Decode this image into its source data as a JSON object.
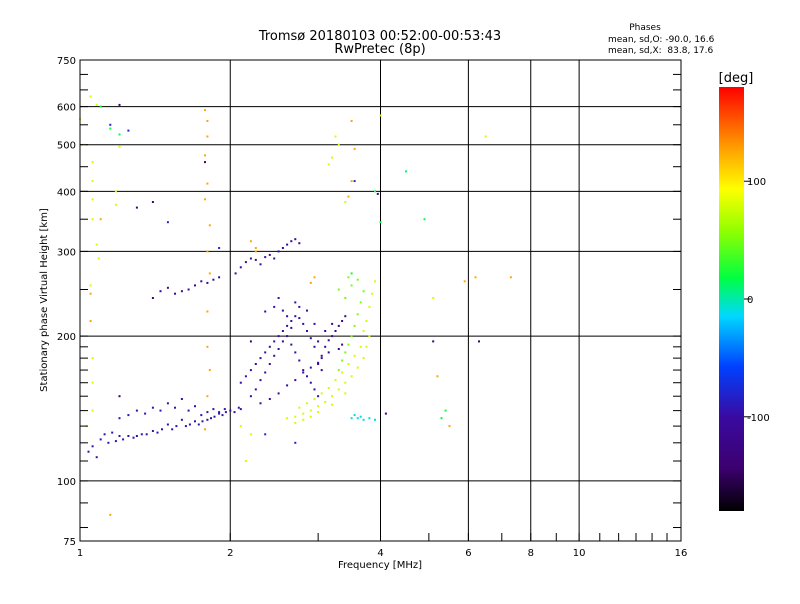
{
  "chart_data": {
    "type": "scatter",
    "title": "Tromsø 20180103 00:52:00-00:53:43",
    "subtitle": "RwPretec (8p)",
    "xlabel": "Frequency [MHz]",
    "ylabel": "Stationary phase Virtual Height [km]",
    "x_scale": "log",
    "y_scale": "log",
    "xlim": [
      1,
      16
    ],
    "ylim": [
      75,
      750
    ],
    "x_ticks": [
      1,
      2,
      4,
      6,
      8,
      10,
      16
    ],
    "x_minor_ticks": [
      3,
      5,
      7,
      9,
      11,
      12,
      13,
      14,
      15
    ],
    "y_ticks": [
      75,
      100,
      200,
      300,
      400,
      500,
      600,
      750
    ],
    "x_gridlines": [
      1,
      2,
      4,
      6,
      8,
      10
    ],
    "y_gridlines": [
      100,
      200,
      300,
      400,
      500,
      600
    ],
    "stats": {
      "heading": "Phases",
      "o_line": "mean, sd,O: -90.0, 16.6",
      "x_line": "mean, sd,X:  83.8, 17.6"
    },
    "colorbar": {
      "label": "[deg]",
      "range": [
        -180,
        180
      ],
      "ticks": [
        {
          "value": 100,
          "label": "100"
        },
        {
          "value": 0,
          "label": "0"
        },
        {
          "value": -100,
          "label": "-100"
        }
      ]
    },
    "clusters": [
      {
        "phase": -95,
        "points": [
          [
            1.04,
            115
          ],
          [
            1.06,
            118
          ],
          [
            1.08,
            112
          ],
          [
            1.1,
            122
          ],
          [
            1.12,
            125
          ],
          [
            1.14,
            120
          ],
          [
            1.16,
            126
          ],
          [
            1.18,
            121
          ],
          [
            1.2,
            124
          ],
          [
            1.22,
            122
          ],
          [
            1.25,
            124
          ],
          [
            1.28,
            123
          ],
          [
            1.3,
            124
          ],
          [
            1.33,
            125
          ],
          [
            1.36,
            125
          ],
          [
            1.4,
            127
          ],
          [
            1.43,
            126
          ],
          [
            1.46,
            128
          ],
          [
            1.5,
            131
          ],
          [
            1.53,
            128
          ],
          [
            1.56,
            130
          ],
          [
            1.6,
            134
          ],
          [
            1.63,
            130
          ],
          [
            1.66,
            131
          ],
          [
            1.7,
            133
          ],
          [
            1.73,
            131
          ],
          [
            1.76,
            133
          ],
          [
            1.8,
            134
          ],
          [
            1.83,
            135
          ],
          [
            1.86,
            136
          ],
          [
            1.9,
            138
          ],
          [
            1.93,
            137
          ],
          [
            1.96,
            139
          ],
          [
            2.0,
            140
          ],
          [
            2.04,
            139
          ],
          [
            2.08,
            142
          ],
          [
            2.1,
            141
          ],
          [
            1.2,
            135
          ],
          [
            1.25,
            137
          ],
          [
            1.3,
            140
          ],
          [
            1.35,
            138
          ],
          [
            1.4,
            142
          ],
          [
            1.45,
            140
          ],
          [
            1.5,
            145
          ],
          [
            1.55,
            142
          ],
          [
            1.6,
            148
          ],
          [
            1.65,
            140
          ],
          [
            1.7,
            143
          ],
          [
            1.75,
            137
          ],
          [
            1.8,
            139
          ],
          [
            1.85,
            141
          ],
          [
            1.9,
            139
          ],
          [
            1.95,
            141
          ]
        ]
      },
      {
        "phase": -100,
        "points": [
          [
            2.1,
            160
          ],
          [
            2.15,
            165
          ],
          [
            2.2,
            170
          ],
          [
            2.25,
            175
          ],
          [
            2.3,
            180
          ],
          [
            2.35,
            185
          ],
          [
            2.4,
            190
          ],
          [
            2.45,
            195
          ],
          [
            2.5,
            200
          ],
          [
            2.55,
            205
          ],
          [
            2.6,
            210
          ],
          [
            2.65,
            215
          ],
          [
            2.7,
            220
          ],
          [
            2.75,
            218
          ],
          [
            2.8,
            212
          ],
          [
            2.85,
            205
          ],
          [
            2.9,
            198
          ],
          [
            2.95,
            190
          ],
          [
            2.2,
            150
          ],
          [
            2.25,
            155
          ],
          [
            2.3,
            162
          ],
          [
            2.35,
            168
          ],
          [
            2.4,
            175
          ],
          [
            2.45,
            182
          ],
          [
            2.5,
            188
          ],
          [
            2.55,
            195
          ],
          [
            2.6,
            200
          ],
          [
            2.65,
            192
          ],
          [
            2.7,
            185
          ],
          [
            2.75,
            178
          ],
          [
            2.8,
            170
          ],
          [
            2.85,
            165
          ],
          [
            2.9,
            160
          ],
          [
            2.95,
            155
          ],
          [
            3.0,
            150
          ],
          [
            2.3,
            145
          ],
          [
            2.4,
            148
          ],
          [
            2.5,
            152
          ],
          [
            2.6,
            158
          ],
          [
            2.7,
            162
          ],
          [
            2.8,
            168
          ],
          [
            2.9,
            172
          ],
          [
            3.0,
            176
          ],
          [
            3.05,
            180
          ],
          [
            2.35,
            225
          ],
          [
            2.45,
            230
          ],
          [
            2.55,
            226
          ],
          [
            2.65,
            208
          ],
          [
            2.75,
            230
          ],
          [
            2.85,
            226
          ],
          [
            2.95,
            212
          ],
          [
            2.5,
            240
          ],
          [
            2.6,
            220
          ],
          [
            2.7,
            235
          ]
        ]
      },
      {
        "phase": -105,
        "points": [
          [
            2.05,
            270
          ],
          [
            2.1,
            278
          ],
          [
            2.15,
            285
          ],
          [
            2.2,
            290
          ],
          [
            2.25,
            288
          ],
          [
            2.3,
            282
          ],
          [
            2.35,
            292
          ],
          [
            2.4,
            295
          ],
          [
            2.45,
            290
          ],
          [
            2.5,
            300
          ],
          [
            2.55,
            305
          ],
          [
            2.6,
            310
          ],
          [
            2.65,
            315
          ],
          [
            2.7,
            318
          ],
          [
            2.75,
            312
          ],
          [
            1.7,
            255
          ],
          [
            1.75,
            260
          ],
          [
            1.8,
            258
          ],
          [
            1.85,
            262
          ],
          [
            1.9,
            265
          ],
          [
            1.65,
            250
          ],
          [
            1.6,
            248
          ],
          [
            1.55,
            245
          ],
          [
            1.45,
            248
          ],
          [
            1.5,
            252
          ]
        ]
      },
      {
        "phase": -120,
        "points": [
          [
            3.0,
            175
          ],
          [
            3.05,
            182
          ],
          [
            3.1,
            190
          ],
          [
            3.15,
            196
          ],
          [
            3.2,
            200
          ],
          [
            3.25,
            205
          ],
          [
            3.3,
            210
          ],
          [
            3.35,
            215
          ],
          [
            3.4,
            220
          ],
          [
            3.0,
            195
          ],
          [
            3.1,
            205
          ],
          [
            3.2,
            212
          ],
          [
            3.3,
            188
          ],
          [
            3.35,
            192
          ],
          [
            3.05,
            170
          ],
          [
            3.15,
            185
          ]
        ]
      },
      {
        "phase": 50,
        "points": [
          [
            3.3,
            170
          ],
          [
            3.35,
            178
          ],
          [
            3.4,
            185
          ],
          [
            3.45,
            192
          ],
          [
            3.5,
            200
          ],
          [
            3.55,
            210
          ],
          [
            3.6,
            222
          ],
          [
            3.65,
            235
          ],
          [
            3.7,
            248
          ],
          [
            3.4,
            240
          ],
          [
            3.5,
            255
          ],
          [
            3.6,
            262
          ],
          [
            3.3,
            250
          ],
          [
            3.45,
            265
          ]
        ]
      },
      {
        "phase": 78,
        "points": [
          [
            2.6,
            135
          ],
          [
            2.7,
            136
          ],
          [
            2.8,
            138
          ],
          [
            2.9,
            140
          ],
          [
            3.0,
            143
          ],
          [
            3.1,
            146
          ],
          [
            3.2,
            150
          ],
          [
            3.3,
            155
          ],
          [
            3.4,
            160
          ],
          [
            3.5,
            165
          ],
          [
            3.6,
            172
          ],
          [
            3.7,
            180
          ],
          [
            3.75,
            190
          ],
          [
            3.8,
            200
          ],
          [
            2.75,
            142
          ],
          [
            2.85,
            145
          ],
          [
            2.95,
            148
          ],
          [
            3.05,
            152
          ],
          [
            3.15,
            156
          ],
          [
            3.25,
            162
          ],
          [
            3.35,
            168
          ],
          [
            3.45,
            175
          ],
          [
            3.55,
            182
          ],
          [
            3.65,
            190
          ],
          [
            3.7,
            205
          ],
          [
            3.75,
            215
          ],
          [
            3.8,
            230
          ],
          [
            3.85,
            245
          ],
          [
            3.9,
            260
          ],
          [
            2.7,
            132
          ],
          [
            2.8,
            134
          ],
          [
            2.9,
            136
          ],
          [
            3.0,
            139
          ],
          [
            3.2,
            144
          ],
          [
            3.4,
            152
          ]
        ]
      },
      {
        "phase": -10,
        "points": [
          [
            3.5,
            135
          ],
          [
            3.6,
            135
          ],
          [
            3.7,
            134
          ],
          [
            3.8,
            135
          ],
          [
            3.9,
            134
          ],
          [
            3.55,
            137
          ],
          [
            3.65,
            136
          ]
        ]
      },
      {
        "phase": 125,
        "points": [
          [
            1.78,
            590
          ],
          [
            1.8,
            560
          ],
          [
            1.8,
            520
          ],
          [
            1.78,
            475
          ],
          [
            1.8,
            415
          ],
          [
            1.78,
            385
          ],
          [
            1.82,
            340
          ],
          [
            1.8,
            300
          ],
          [
            1.82,
            270
          ],
          [
            1.8,
            225
          ],
          [
            1.8,
            190
          ],
          [
            1.82,
            170
          ],
          [
            1.8,
            150
          ],
          [
            1.78,
            128
          ],
          [
            1.05,
            245
          ],
          [
            1.05,
            215
          ],
          [
            1.1,
            350
          ],
          [
            3.5,
            560
          ],
          [
            3.55,
            490
          ],
          [
            3.5,
            420
          ],
          [
            3.45,
            390
          ],
          [
            5.3,
            135
          ],
          [
            5.5,
            130
          ],
          [
            5.2,
            165
          ],
          [
            1.15,
            85
          ],
          [
            2.2,
            315
          ],
          [
            2.25,
            300
          ],
          [
            2.25,
            305
          ],
          [
            2.95,
            265
          ],
          [
            2.9,
            258
          ],
          [
            5.9,
            260
          ],
          [
            6.2,
            265
          ],
          [
            7.3,
            265
          ]
        ]
      },
      {
        "phase": 80,
        "points": [
          [
            1.05,
            630
          ],
          [
            1.08,
            605
          ],
          [
            1.0,
            565
          ],
          [
            1.02,
            500
          ],
          [
            1.06,
            460
          ],
          [
            1.06,
            420
          ],
          [
            1.06,
            385
          ],
          [
            1.06,
            350
          ],
          [
            1.08,
            310
          ],
          [
            1.09,
            290
          ],
          [
            1.05,
            255
          ],
          [
            1.06,
            180
          ],
          [
            1.06,
            160
          ],
          [
            1.06,
            140
          ],
          [
            1.03,
            130
          ],
          [
            1.2,
            495
          ],
          [
            1.18,
            400
          ],
          [
            1.18,
            375
          ],
          [
            2.1,
            130
          ],
          [
            2.15,
            110
          ],
          [
            2.2,
            125
          ],
          [
            3.25,
            520
          ],
          [
            3.3,
            500
          ],
          [
            3.2,
            470
          ],
          [
            3.15,
            455
          ],
          [
            3.4,
            380
          ],
          [
            5.1,
            240
          ],
          [
            6.5,
            520
          ],
          [
            4.0,
            575
          ]
        ]
      },
      {
        "phase": 20,
        "points": [
          [
            1.1,
            600
          ],
          [
            1.15,
            540
          ],
          [
            1.2,
            525
          ],
          [
            3.9,
            400
          ],
          [
            4.0,
            345
          ],
          [
            3.5,
            270
          ],
          [
            5.4,
            140
          ],
          [
            5.3,
            135
          ],
          [
            4.5,
            440
          ],
          [
            4.9,
            350
          ]
        ]
      },
      {
        "phase": -140,
        "points": [
          [
            1.2,
            605
          ],
          [
            1.78,
            460
          ],
          [
            1.4,
            380
          ],
          [
            1.3,
            370
          ],
          [
            3.95,
            395
          ],
          [
            4.1,
            138
          ],
          [
            5.1,
            195
          ],
          [
            6.3,
            195
          ],
          [
            2.2,
            195
          ],
          [
            1.2,
            150
          ],
          [
            1.4,
            240
          ]
        ]
      },
      {
        "phase": -80,
        "points": [
          [
            1.15,
            550
          ],
          [
            1.25,
            535
          ],
          [
            1.5,
            345
          ],
          [
            1.9,
            305
          ],
          [
            2.35,
            125
          ],
          [
            2.7,
            120
          ],
          [
            3.55,
            420
          ]
        ]
      }
    ]
  }
}
